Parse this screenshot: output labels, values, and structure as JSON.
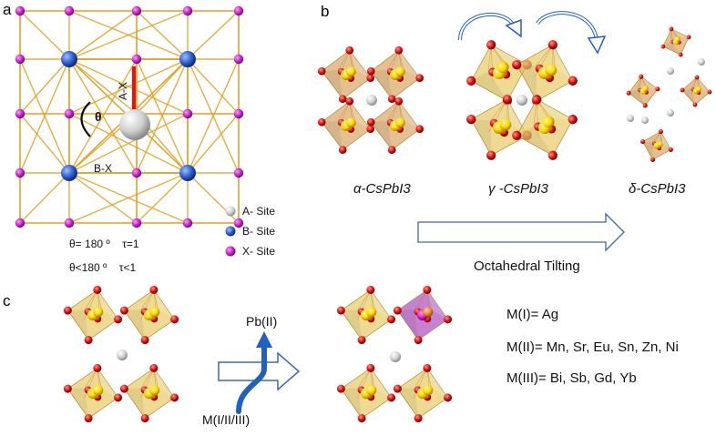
{
  "panels": {
    "a": {
      "letter": "a",
      "labels": {
        "ax": "A-X",
        "bx": "B-X",
        "theta": "θ"
      },
      "legend": [
        {
          "label": "A- Site",
          "color": "#c8c8c8"
        },
        {
          "label": "B- Site",
          "color": "#2f5fd0"
        },
        {
          "label": "X- Site",
          "color": "#cc22cc"
        }
      ],
      "conditions": [
        "θ= 180 º    τ=1",
        "θ<180 º    τ<1"
      ]
    },
    "b": {
      "letter": "b",
      "phases": [
        "α-CsPbI3",
        "γ -CsPbI3",
        "δ-CsPbI3"
      ],
      "arrow_label": "Octahedral Tilting"
    },
    "c": {
      "letter": "c",
      "label_top": "Pb(II)",
      "label_bottom": "M(I/II/III)",
      "substitutions": [
        "M(I)= Ag",
        "M(II)= Mn, Sr, Eu, Sn, Zn, Ni",
        "M(III)= Bi, Sb, Gd, Yb"
      ]
    }
  },
  "colors": {
    "octahedron": "#e8cc6a",
    "octahedron_brown": "#d9a868",
    "x_atom": "#dd1010",
    "b_atom": "#ffd800",
    "a_atom": "#d8d8d8",
    "frame": "#e0a020",
    "dopant": "#b050c0",
    "arrow_blue": "#2060c0",
    "outline_blue": "#3a6aa8"
  }
}
